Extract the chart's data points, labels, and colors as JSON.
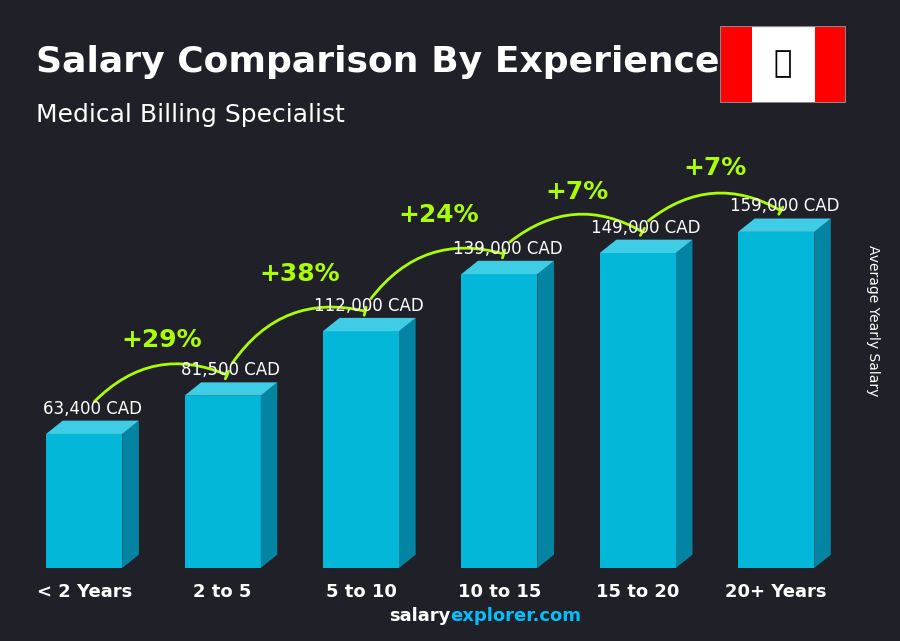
{
  "title": "Salary Comparison By Experience",
  "subtitle": "Medical Billing Specialist",
  "ylabel": "Average Yearly Salary",
  "footer": "salaryexplorer.com",
  "categories": [
    "< 2 Years",
    "2 to 5",
    "5 to 10",
    "10 to 15",
    "15 to 20",
    "20+ Years"
  ],
  "values": [
    63400,
    81500,
    112000,
    139000,
    149000,
    159000
  ],
  "value_labels": [
    "63,400 CAD",
    "81,500 CAD",
    "112,000 CAD",
    "139,000 CAD",
    "149,000 CAD",
    "159,000 CAD"
  ],
  "pct_labels": [
    "+29%",
    "+38%",
    "+24%",
    "+7%",
    "+7%"
  ],
  "bar_color_top": "#00BFFF",
  "bar_color_main": "#00A8D4",
  "bar_color_dark": "#007BA0",
  "bar_color_shadow": "#005F7A",
  "background_color": "#2a2a2a",
  "title_color": "#FFFFFF",
  "subtitle_color": "#FFFFFF",
  "label_color": "#FFFFFF",
  "pct_color": "#AAFF00",
  "footer_color_salary": "#FFFFFF",
  "footer_color_explorer": "#00BFFF",
  "ylim": [
    0,
    180000
  ],
  "title_fontsize": 28,
  "subtitle_fontsize": 20,
  "cat_fontsize": 14,
  "val_fontsize": 13,
  "pct_fontsize": 18
}
